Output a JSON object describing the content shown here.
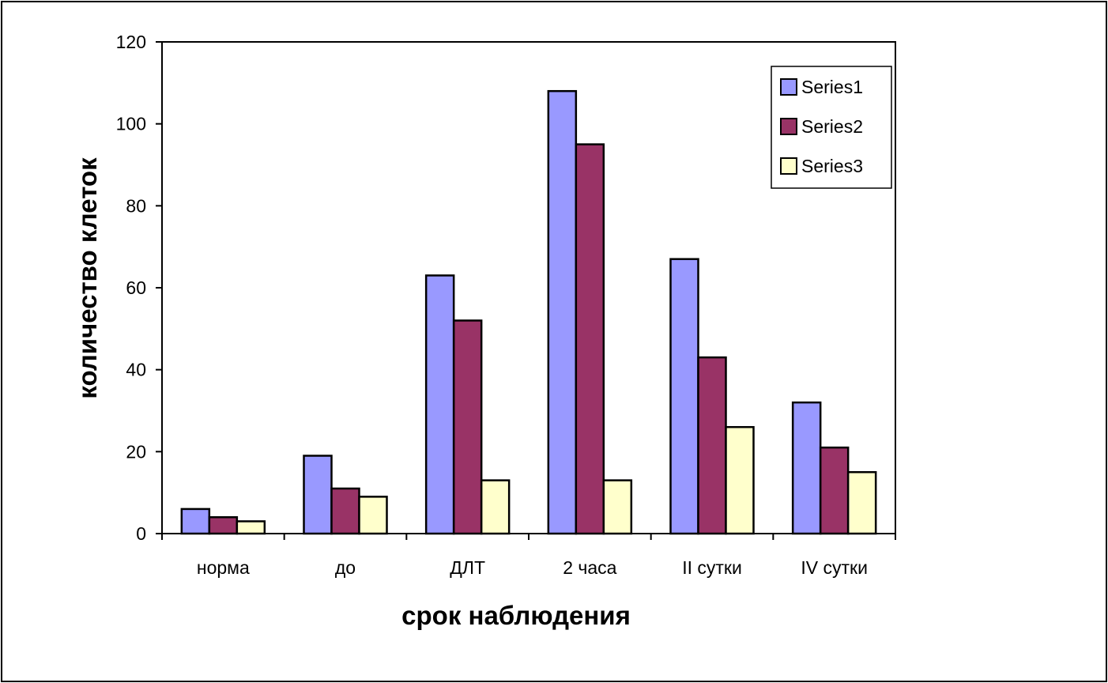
{
  "chart_data": {
    "type": "bar",
    "title": "",
    "xlabel": "срок наблюдения",
    "ylabel": "количество клеток",
    "categories": [
      "норма",
      "до",
      "ДЛТ",
      "2 часа",
      "II сутки",
      "IV сутки"
    ],
    "series": [
      {
        "name": "Series1",
        "color": "#9999ff",
        "values": [
          6,
          19,
          63,
          108,
          67,
          32
        ]
      },
      {
        "name": "Series2",
        "color": "#993366",
        "values": [
          4,
          11,
          52,
          95,
          43,
          21
        ]
      },
      {
        "name": "Series3",
        "color": "#ffffcc",
        "values": [
          3,
          9,
          13,
          13,
          26,
          15
        ]
      }
    ],
    "ylim": [
      0,
      120
    ],
    "yticks": [
      "0",
      "20",
      "40",
      "60",
      "80",
      "100",
      "120"
    ],
    "grid": false,
    "legend": "top-right"
  }
}
